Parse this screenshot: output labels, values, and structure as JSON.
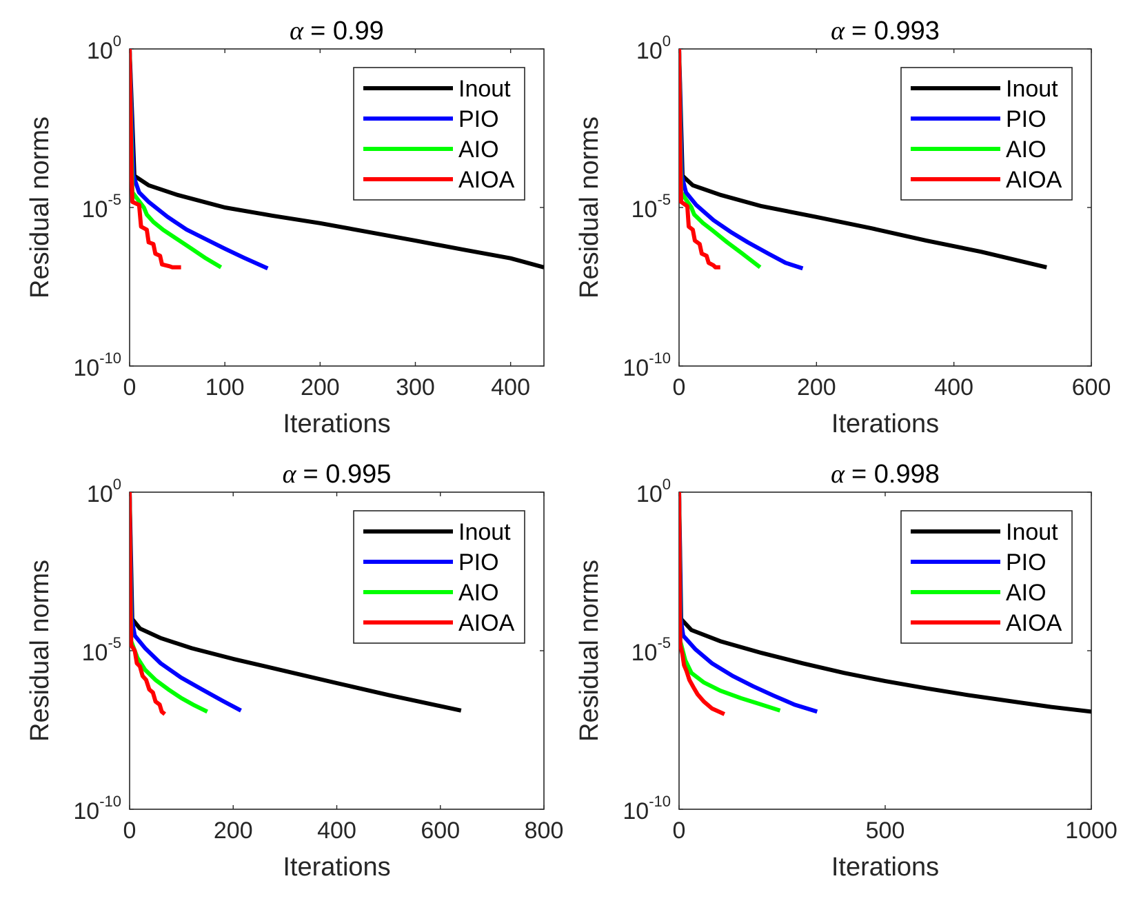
{
  "chart_data": [
    {
      "type": "line",
      "title": "= 0.99",
      "title_symbol": "α",
      "xlabel": "Iterations",
      "ylabel": "Residual norms",
      "xlim": [
        0,
        435
      ],
      "ylim": [
        1e-10,
        1
      ],
      "yscale": "log",
      "xticks": [
        0,
        100,
        200,
        300,
        400
      ],
      "yticks": [
        {
          "base": "10",
          "exp": "-10",
          "value": 1e-10
        },
        {
          "base": "10",
          "exp": "-5",
          "value": 1e-05
        },
        {
          "base": "10",
          "exp": "0",
          "value": 1
        }
      ],
      "legend_position": "top-right",
      "grid": false,
      "series": [
        {
          "name": "Inout",
          "color": "#000000",
          "points": [
            [
              0,
              1
            ],
            [
              5,
              0.0001
            ],
            [
              20,
              5e-05
            ],
            [
              50,
              2.5e-05
            ],
            [
              100,
              1e-05
            ],
            [
              150,
              5.5e-06
            ],
            [
              200,
              3.2e-06
            ],
            [
              250,
              1.7e-06
            ],
            [
              300,
              9e-07
            ],
            [
              350,
              4.7e-07
            ],
            [
              400,
              2.5e-07
            ],
            [
              435,
              1.3e-07
            ]
          ]
        },
        {
          "name": "PIO",
          "color": "#0000ff",
          "points": [
            [
              0,
              1
            ],
            [
              4,
              0.0001
            ],
            [
              10,
              3e-05
            ],
            [
              20,
              1.5e-05
            ],
            [
              40,
              5e-06
            ],
            [
              60,
              2e-06
            ],
            [
              80,
              1e-06
            ],
            [
              100,
              5e-07
            ],
            [
              120,
              2.6e-07
            ],
            [
              145,
              1.2e-07
            ]
          ]
        },
        {
          "name": "AIO",
          "color": "#00ff00",
          "points": [
            [
              0,
              1
            ],
            [
              3,
              3e-05
            ],
            [
              15,
              1e-05
            ],
            [
              18,
              6e-06
            ],
            [
              25,
              3.5e-06
            ],
            [
              35,
              2e-06
            ],
            [
              50,
              1e-06
            ],
            [
              65,
              5e-07
            ],
            [
              80,
              2.5e-07
            ],
            [
              96,
              1.3e-07
            ]
          ]
        },
        {
          "name": "AIOA",
          "color": "#ff0000",
          "points": [
            [
              0,
              1
            ],
            [
              2,
              0.0001
            ],
            [
              3,
              1.5e-05
            ],
            [
              10,
              1.2e-05
            ],
            [
              12,
              2.5e-06
            ],
            [
              18,
              2e-06
            ],
            [
              20,
              8e-07
            ],
            [
              25,
              7e-07
            ],
            [
              27,
              3.5e-07
            ],
            [
              32,
              3e-07
            ],
            [
              34,
              1.6e-07
            ],
            [
              42,
              1.4e-07
            ],
            [
              45,
              1.3e-07
            ],
            [
              54,
              1.3e-07
            ]
          ]
        }
      ]
    },
    {
      "type": "line",
      "title": "= 0.993",
      "title_symbol": "α",
      "xlabel": "Iterations",
      "ylabel": "Residual norms",
      "xlim": [
        0,
        600
      ],
      "ylim": [
        1e-10,
        1
      ],
      "yscale": "log",
      "xticks": [
        0,
        200,
        400,
        600
      ],
      "yticks": [
        {
          "base": "10",
          "exp": "-10",
          "value": 1e-10
        },
        {
          "base": "10",
          "exp": "-5",
          "value": 1e-05
        },
        {
          "base": "10",
          "exp": "0",
          "value": 1
        }
      ],
      "legend_position": "top-right",
      "grid": false,
      "series": [
        {
          "name": "Inout",
          "color": "#000000",
          "points": [
            [
              0,
              1
            ],
            [
              5,
              0.0001
            ],
            [
              20,
              5e-05
            ],
            [
              60,
              2.5e-05
            ],
            [
              120,
              1.1e-05
            ],
            [
              200,
              5e-06
            ],
            [
              280,
              2.2e-06
            ],
            [
              360,
              9e-07
            ],
            [
              440,
              4e-07
            ],
            [
              535,
              1.3e-07
            ]
          ]
        },
        {
          "name": "PIO",
          "color": "#0000ff",
          "points": [
            [
              0,
              1
            ],
            [
              4,
              0.0001
            ],
            [
              10,
              3e-05
            ],
            [
              25,
              1.2e-05
            ],
            [
              50,
              4e-06
            ],
            [
              75,
              1.7e-06
            ],
            [
              100,
              8e-07
            ],
            [
              130,
              3.5e-07
            ],
            [
              155,
              1.8e-07
            ],
            [
              180,
              1.2e-07
            ]
          ]
        },
        {
          "name": "AIO",
          "color": "#00ff00",
          "points": [
            [
              0,
              1
            ],
            [
              3,
              3e-05
            ],
            [
              18,
              1e-05
            ],
            [
              22,
              6e-06
            ],
            [
              35,
              3.2e-06
            ],
            [
              50,
              1.8e-06
            ],
            [
              70,
              8e-07
            ],
            [
              90,
              3.8e-07
            ],
            [
              118,
              1.3e-07
            ]
          ]
        },
        {
          "name": "AIOA",
          "color": "#ff0000",
          "points": [
            [
              0,
              1
            ],
            [
              2,
              0.0001
            ],
            [
              3,
              1.5e-05
            ],
            [
              12,
              1.1e-05
            ],
            [
              14,
              2.5e-06
            ],
            [
              20,
              2e-06
            ],
            [
              23,
              9e-07
            ],
            [
              30,
              7e-07
            ],
            [
              33,
              3.5e-07
            ],
            [
              40,
              3e-07
            ],
            [
              43,
              1.8e-07
            ],
            [
              50,
              1.5e-07
            ],
            [
              53,
              1.3e-07
            ],
            [
              60,
              1.3e-07
            ]
          ]
        }
      ]
    },
    {
      "type": "line",
      "title": "= 0.995",
      "title_symbol": "α",
      "xlabel": "Iterations",
      "ylabel": "Residual norms",
      "xlim": [
        0,
        800
      ],
      "ylim": [
        1e-10,
        1
      ],
      "yscale": "log",
      "xticks": [
        0,
        200,
        400,
        600,
        800
      ],
      "yticks": [
        {
          "base": "10",
          "exp": "-10",
          "value": 1e-10
        },
        {
          "base": "10",
          "exp": "-5",
          "value": 1e-05
        },
        {
          "base": "10",
          "exp": "0",
          "value": 1
        }
      ],
      "legend_position": "top-right",
      "grid": false,
      "series": [
        {
          "name": "Inout",
          "color": "#000000",
          "points": [
            [
              0,
              1
            ],
            [
              5,
              0.0001
            ],
            [
              20,
              5e-05
            ],
            [
              60,
              2.5e-05
            ],
            [
              120,
              1.2e-05
            ],
            [
              200,
              5.5e-06
            ],
            [
              300,
              2.3e-06
            ],
            [
              400,
              9.5e-07
            ],
            [
              500,
              4e-07
            ],
            [
              640,
              1.3e-07
            ]
          ]
        },
        {
          "name": "PIO",
          "color": "#0000ff",
          "points": [
            [
              0,
              1
            ],
            [
              4,
              0.0001
            ],
            [
              10,
              3e-05
            ],
            [
              30,
              1.2e-05
            ],
            [
              60,
              4e-06
            ],
            [
              100,
              1.4e-06
            ],
            [
              140,
              6e-07
            ],
            [
              180,
              2.6e-07
            ],
            [
              215,
              1.3e-07
            ]
          ]
        },
        {
          "name": "AIO",
          "color": "#00ff00",
          "points": [
            [
              0,
              1
            ],
            [
              3,
              2e-05
            ],
            [
              15,
              6e-06
            ],
            [
              30,
              2.5e-06
            ],
            [
              50,
              1.2e-06
            ],
            [
              75,
              6e-07
            ],
            [
              100,
              3.2e-07
            ],
            [
              125,
              1.9e-07
            ],
            [
              150,
              1.2e-07
            ]
          ]
        },
        {
          "name": "AIOA",
          "color": "#ff0000",
          "points": [
            [
              0,
              1
            ],
            [
              2,
              0.0001
            ],
            [
              3,
              1.5e-05
            ],
            [
              10,
              1e-05
            ],
            [
              14,
              4e-06
            ],
            [
              20,
              3.2e-06
            ],
            [
              25,
              1.6e-06
            ],
            [
              32,
              1.2e-06
            ],
            [
              38,
              6e-07
            ],
            [
              45,
              4.8e-07
            ],
            [
              50,
              2.5e-07
            ],
            [
              58,
              2e-07
            ],
            [
              62,
              1.2e-07
            ],
            [
              68,
              1e-07
            ]
          ]
        }
      ]
    },
    {
      "type": "line",
      "title": "= 0.998",
      "title_symbol": "α",
      "xlabel": "Iterations",
      "ylabel": "Residual norms",
      "xlim": [
        0,
        1000
      ],
      "ylim": [
        1e-10,
        1
      ],
      "yscale": "log",
      "xticks": [
        0,
        500,
        1000
      ],
      "yticks": [
        {
          "base": "10",
          "exp": "-10",
          "value": 1e-10
        },
        {
          "base": "10",
          "exp": "-5",
          "value": 1e-05
        },
        {
          "base": "10",
          "exp": "0",
          "value": 1
        }
      ],
      "legend_position": "top-right",
      "grid": false,
      "series": [
        {
          "name": "Inout",
          "color": "#000000",
          "points": [
            [
              0,
              1
            ],
            [
              5,
              0.0001
            ],
            [
              30,
              4.5e-05
            ],
            [
              100,
              2e-05
            ],
            [
              200,
              8.5e-06
            ],
            [
              300,
              4e-06
            ],
            [
              400,
              2e-06
            ],
            [
              500,
              1.1e-06
            ],
            [
              600,
              6.5e-07
            ],
            [
              700,
              4e-07
            ],
            [
              800,
              2.6e-07
            ],
            [
              900,
              1.7e-07
            ],
            [
              1000,
              1.2e-07
            ]
          ]
        },
        {
          "name": "PIO",
          "color": "#0000ff",
          "points": [
            [
              0,
              1
            ],
            [
              4,
              0.0001
            ],
            [
              10,
              3e-05
            ],
            [
              40,
              1.1e-05
            ],
            [
              80,
              4e-06
            ],
            [
              130,
              1.6e-06
            ],
            [
              180,
              7.5e-07
            ],
            [
              230,
              3.8e-07
            ],
            [
              280,
              2e-07
            ],
            [
              335,
              1.2e-07
            ]
          ]
        },
        {
          "name": "AIO",
          "color": "#00ff00",
          "points": [
            [
              0,
              1
            ],
            [
              3,
              2e-05
            ],
            [
              15,
              5e-06
            ],
            [
              30,
              2e-06
            ],
            [
              60,
              1e-06
            ],
            [
              100,
              5.5e-07
            ],
            [
              150,
              3.2e-07
            ],
            [
              200,
              2e-07
            ],
            [
              245,
              1.3e-07
            ]
          ]
        },
        {
          "name": "AIOA",
          "color": "#ff0000",
          "points": [
            [
              0,
              1
            ],
            [
              2,
              0.0001
            ],
            [
              3,
              1.5e-05
            ],
            [
              8,
              8e-06
            ],
            [
              12,
              3.5e-06
            ],
            [
              18,
              2.3e-06
            ],
            [
              25,
              1.2e-06
            ],
            [
              35,
              7e-07
            ],
            [
              45,
              4.2e-07
            ],
            [
              60,
              2.5e-07
            ],
            [
              80,
              1.5e-07
            ],
            [
              110,
              1e-07
            ]
          ]
        }
      ]
    }
  ]
}
